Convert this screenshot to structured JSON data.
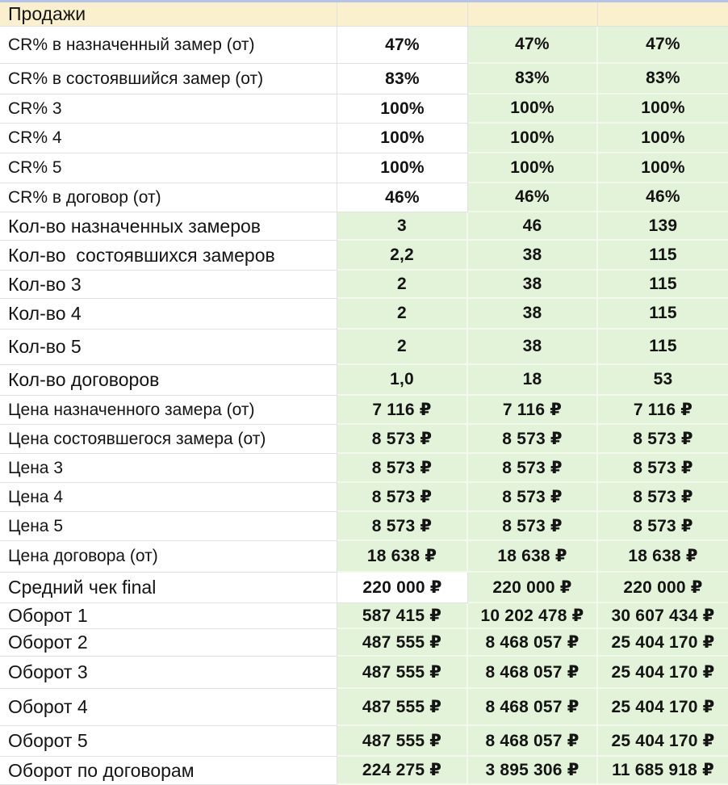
{
  "sheet": {
    "header": {
      "title": "Продажи",
      "value_cells": [
        "",
        "",
        ""
      ]
    },
    "rows": [
      {
        "label": "CR% в назначенный замер (от)",
        "values": [
          "47%",
          "47%",
          "47%"
        ],
        "first_white": true,
        "big_label": false
      },
      {
        "label": "CR% в состоявшийся замер (от)",
        "values": [
          "83%",
          "83%",
          "83%"
        ],
        "first_white": true,
        "big_label": false
      },
      {
        "label": "CR% 3",
        "values": [
          "100%",
          "100%",
          "100%"
        ],
        "first_white": true,
        "big_label": false
      },
      {
        "label": "CR% 4",
        "values": [
          "100%",
          "100%",
          "100%"
        ],
        "first_white": true,
        "big_label": false
      },
      {
        "label": "CR% 5",
        "values": [
          "100%",
          "100%",
          "100%"
        ],
        "first_white": true,
        "big_label": false
      },
      {
        "label": "CR% в договор (от)",
        "values": [
          "46%",
          "46%",
          "46%"
        ],
        "first_white": true,
        "big_label": false
      },
      {
        "label": "Кол-во назначенных замеров",
        "values": [
          "3",
          "46",
          "139"
        ],
        "first_white": false,
        "big_label": true
      },
      {
        "label": "Кол-во  состоявшихся замеров",
        "values": [
          "2,2",
          "38",
          "115"
        ],
        "first_white": false,
        "big_label": true
      },
      {
        "label": "Кол-во 3",
        "values": [
          "2",
          "38",
          "115"
        ],
        "first_white": false,
        "big_label": true
      },
      {
        "label": "Кол-во 4",
        "values": [
          "2",
          "38",
          "115"
        ],
        "first_white": false,
        "big_label": true
      },
      {
        "label": "Кол-во 5",
        "values": [
          "2",
          "38",
          "115"
        ],
        "first_white": false,
        "big_label": true
      },
      {
        "label": "Кол-во договоров",
        "values": [
          "1,0",
          "18",
          "53"
        ],
        "first_white": false,
        "big_label": true
      },
      {
        "label": "Цена назначенного замера (от)",
        "values": [
          "7 116 ₽",
          "7 116 ₽",
          "7 116 ₽"
        ],
        "first_white": false,
        "big_label": false
      },
      {
        "label": "Цена состоявшегося замера (от)",
        "values": [
          "8 573 ₽",
          "8 573 ₽",
          "8 573 ₽"
        ],
        "first_white": false,
        "big_label": false
      },
      {
        "label": "Цена 3",
        "values": [
          "8 573 ₽",
          "8 573 ₽",
          "8 573 ₽"
        ],
        "first_white": false,
        "big_label": false
      },
      {
        "label": "Цена 4",
        "values": [
          "8 573 ₽",
          "8 573 ₽",
          "8 573 ₽"
        ],
        "first_white": false,
        "big_label": false
      },
      {
        "label": "Цена 5",
        "values": [
          "8 573 ₽",
          "8 573 ₽",
          "8 573 ₽"
        ],
        "first_white": false,
        "big_label": false
      },
      {
        "label": "Цена договора (от)",
        "values": [
          "18 638 ₽",
          "18 638 ₽",
          "18 638 ₽"
        ],
        "first_white": false,
        "big_label": false
      },
      {
        "label": "Средний чек final",
        "values": [
          "220 000 ₽",
          "220 000 ₽",
          "220 000 ₽"
        ],
        "first_white": true,
        "big_label": true
      },
      {
        "label": "Оборот 1",
        "values": [
          "587 415 ₽",
          "10 202 478 ₽",
          "30 607 434 ₽"
        ],
        "first_white": false,
        "big_label": true
      },
      {
        "label": "Оборот 2",
        "values": [
          "487 555 ₽",
          "8 468 057 ₽",
          "25 404 170 ₽"
        ],
        "first_white": false,
        "big_label": true
      },
      {
        "label": "Оборот 3",
        "values": [
          "487 555 ₽",
          "8 468 057 ₽",
          "25 404 170 ₽"
        ],
        "first_white": false,
        "big_label": true
      },
      {
        "label": "Оборот 4",
        "values": [
          "487 555 ₽",
          "8 468 057 ₽",
          "25 404 170 ₽"
        ],
        "first_white": false,
        "big_label": true
      },
      {
        "label": "Оборот 5",
        "values": [
          "487 555 ₽",
          "8 468 057 ₽",
          "25 404 170 ₽"
        ],
        "first_white": false,
        "big_label": true
      },
      {
        "label": "Оборот по договорам",
        "values": [
          "224 275 ₽",
          "3 895 306 ₽",
          "11 685 918 ₽"
        ],
        "first_white": false,
        "big_label": true
      }
    ],
    "colors": {
      "header_bg": "#fbf0cd",
      "green_bg": "#e3f3d9",
      "white_bg": "#ffffff",
      "grid_gray": "#e1e1e1",
      "grid_green": "#f2f9eb",
      "top_accent": "#b5c2ea",
      "text": "#141414"
    }
  }
}
